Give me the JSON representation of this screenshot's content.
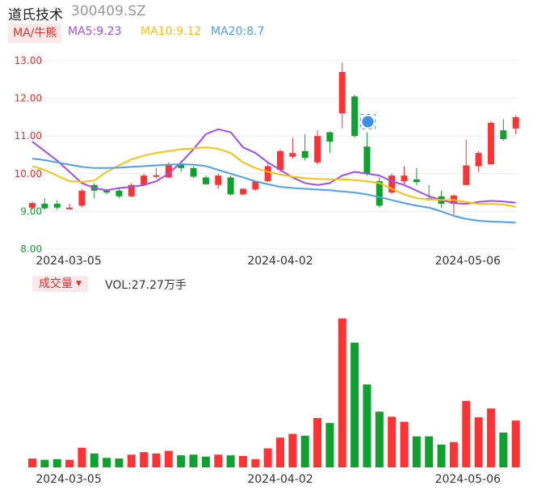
{
  "stock": {
    "name": "道氏技术",
    "code": "300409.SZ"
  },
  "ma_button": "MA/牛熊",
  "ma_legend": [
    {
      "label": "MA5:9.23",
      "color": "#a24cf0"
    },
    {
      "label": "MA10:9.12",
      "color": "#f5c211"
    },
    {
      "label": "MA20:8.7",
      "color": "#4ea0e8"
    }
  ],
  "volume": {
    "button": "成交量",
    "caret": "▼",
    "label": "VOL:27.27万手"
  },
  "colors": {
    "up": "#ff3333",
    "down": "#10a030",
    "grid": "#ececec",
    "axis_up": "#e03030",
    "axis_down": "#10a030"
  },
  "chart_data": {
    "type": "candlestick",
    "ylim": [
      8.0,
      13.0
    ],
    "y_ticks": [
      "13.00",
      "12.00",
      "11.00",
      "10.00",
      "9.00",
      "8.00"
    ],
    "x_tick_labels": [
      {
        "label": "2024-03-05",
        "index": 3
      },
      {
        "label": "2024-04-02",
        "index": 20
      },
      {
        "label": "2024-05-06",
        "index": 35
      }
    ],
    "candles": [
      {
        "o": 9.1,
        "c": 9.22,
        "h": 9.27,
        "l": 9.05
      },
      {
        "o": 9.2,
        "c": 9.08,
        "h": 9.35,
        "l": 9.04
      },
      {
        "o": 9.2,
        "c": 9.1,
        "h": 9.3,
        "l": 9.05
      },
      {
        "o": 9.1,
        "c": 9.1,
        "h": 9.2,
        "l": 9.05
      },
      {
        "o": 9.15,
        "c": 9.55,
        "h": 9.6,
        "l": 9.1
      },
      {
        "o": 9.7,
        "c": 9.55,
        "h": 9.75,
        "l": 9.35
      },
      {
        "o": 9.55,
        "c": 9.5,
        "h": 9.6,
        "l": 9.45
      },
      {
        "o": 9.55,
        "c": 9.4,
        "h": 9.6,
        "l": 9.35
      },
      {
        "o": 9.4,
        "c": 9.7,
        "h": 9.75,
        "l": 9.38
      },
      {
        "o": 9.7,
        "c": 9.95,
        "h": 10.0,
        "l": 9.68
      },
      {
        "o": 9.92,
        "c": 9.96,
        "h": 10.15,
        "l": 9.88
      },
      {
        "o": 9.9,
        "c": 10.25,
        "h": 10.3,
        "l": 9.88
      },
      {
        "o": 10.25,
        "c": 10.15,
        "h": 10.35,
        "l": 10.05
      },
      {
        "o": 10.15,
        "c": 9.92,
        "h": 10.2,
        "l": 9.88
      },
      {
        "o": 9.9,
        "c": 9.72,
        "h": 9.95,
        "l": 9.7
      },
      {
        "o": 9.7,
        "c": 9.95,
        "h": 10.0,
        "l": 9.6
      },
      {
        "o": 9.9,
        "c": 9.45,
        "h": 9.95,
        "l": 9.42
      },
      {
        "o": 9.45,
        "c": 9.6,
        "h": 9.62,
        "l": 9.42
      },
      {
        "o": 9.58,
        "c": 9.8,
        "h": 9.82,
        "l": 9.55
      },
      {
        "o": 9.8,
        "c": 10.2,
        "h": 10.3,
        "l": 9.78
      },
      {
        "o": 10.1,
        "c": 10.6,
        "h": 10.65,
        "l": 10.05
      },
      {
        "o": 10.45,
        "c": 10.55,
        "h": 10.95,
        "l": 10.4
      },
      {
        "o": 10.6,
        "c": 10.42,
        "h": 11.05,
        "l": 10.35
      },
      {
        "o": 10.3,
        "c": 11.0,
        "h": 11.15,
        "l": 10.25
      },
      {
        "o": 11.1,
        "c": 10.85,
        "h": 11.12,
        "l": 10.55
      },
      {
        "o": 11.6,
        "c": 12.7,
        "h": 12.95,
        "l": 11.2
      },
      {
        "o": 12.05,
        "c": 11.0,
        "h": 12.1,
        "l": 10.95
      },
      {
        "o": 10.72,
        "c": 10.0,
        "h": 11.1,
        "l": 9.95
      },
      {
        "o": 9.8,
        "c": 9.15,
        "h": 9.9,
        "l": 9.1
      },
      {
        "o": 9.5,
        "c": 9.95,
        "h": 10.0,
        "l": 9.45
      },
      {
        "o": 9.8,
        "c": 9.95,
        "h": 10.2,
        "l": 9.7
      },
      {
        "o": 9.85,
        "c": 9.78,
        "h": 10.15,
        "l": 9.7
      },
      {
        "o": 9.35,
        "c": 9.3,
        "h": 9.7,
        "l": 9.28
      },
      {
        "o": 9.4,
        "c": 9.2,
        "h": 9.55,
        "l": 9.1
      },
      {
        "o": 9.2,
        "c": 9.42,
        "h": 9.45,
        "l": 8.85
      },
      {
        "o": 9.7,
        "c": 10.22,
        "h": 10.9,
        "l": 9.7
      },
      {
        "o": 10.2,
        "c": 10.55,
        "h": 10.6,
        "l": 10.05
      },
      {
        "o": 10.25,
        "c": 11.35,
        "h": 11.4,
        "l": 10.25
      },
      {
        "o": 11.15,
        "c": 10.92,
        "h": 11.45,
        "l": 10.88
      },
      {
        "o": 11.2,
        "c": 11.5,
        "h": 11.55,
        "l": 11.05
      }
    ],
    "series": [
      {
        "name": "MA5",
        "values": [
          10.85,
          10.6,
          10.35,
          10.05,
          9.75,
          9.62,
          9.56,
          9.62,
          9.65,
          9.7,
          9.8,
          10.0,
          10.3,
          10.65,
          11.05,
          11.18,
          11.1,
          10.7,
          10.55,
          10.3,
          10.1,
          9.9,
          9.75,
          9.7,
          9.75,
          9.95,
          10.05,
          10.0,
          9.95,
          9.8,
          9.7,
          9.55,
          9.4,
          9.3,
          9.22,
          9.2,
          9.25,
          9.28,
          9.26,
          9.23
        ]
      },
      {
        "name": "MA10",
        "values": [
          10.2,
          10.1,
          9.95,
          9.8,
          9.78,
          9.82,
          10.05,
          10.22,
          10.38,
          10.48,
          10.55,
          10.6,
          10.65,
          10.67,
          10.7,
          10.66,
          10.55,
          10.3,
          10.15,
          10.05,
          9.98,
          9.92,
          9.88,
          9.86,
          9.85,
          9.85,
          9.83,
          9.8,
          9.75,
          9.6,
          9.45,
          9.35,
          9.32,
          9.3,
          9.3,
          9.25,
          9.2,
          9.2,
          9.18,
          9.12
        ]
      },
      {
        "name": "MA20",
        "values": [
          10.4,
          10.36,
          10.3,
          10.24,
          10.18,
          10.15,
          10.15,
          10.16,
          10.18,
          10.2,
          10.22,
          10.24,
          10.25,
          10.24,
          10.2,
          10.1,
          10.0,
          9.9,
          9.8,
          9.72,
          9.65,
          9.62,
          9.6,
          9.58,
          9.56,
          9.53,
          9.5,
          9.45,
          9.38,
          9.3,
          9.22,
          9.15,
          9.1,
          9.0,
          8.88,
          8.8,
          8.75,
          8.73,
          8.72,
          8.7
        ]
      }
    ],
    "volume": [
      14,
      12,
      13,
      12,
      31,
      22,
      15,
      14,
      20,
      24,
      22,
      26,
      19,
      20,
      17,
      20,
      19,
      18,
      13,
      30,
      47,
      53,
      50,
      78,
      70,
      235,
      197,
      131,
      88,
      80,
      72,
      49,
      49,
      36,
      40,
      105,
      79,
      93,
      55,
      74
    ]
  }
}
